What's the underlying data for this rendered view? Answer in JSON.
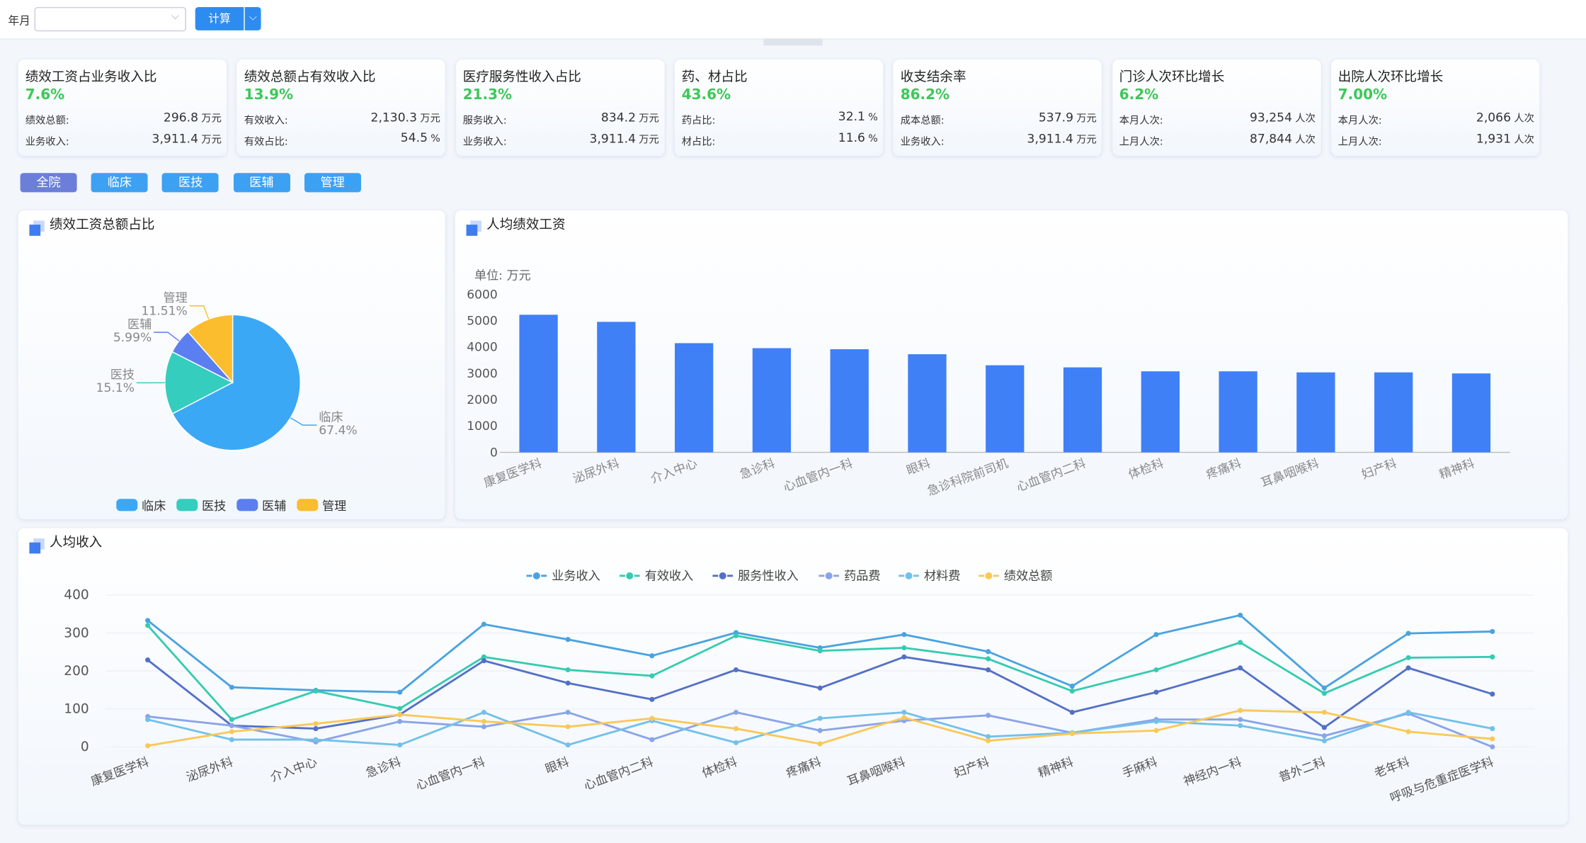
{
  "header": {
    "month_label": "年月",
    "button": "计算"
  },
  "kpis": [
    {
      "title": "绩效工资占业务收入比",
      "value": "7.6%",
      "rows": [
        {
          "label": "绩效总额:",
          "value": "296.8",
          "unit": "万元"
        },
        {
          "label": "业务收入:",
          "value": "3,911.4",
          "unit": "万元"
        }
      ]
    },
    {
      "title": "绩效总额占有效收入比",
      "value": "13.9%",
      "rows": [
        {
          "label": "有效收入:",
          "value": "2,130.3",
          "unit": "万元"
        },
        {
          "label": "有效占比:",
          "value": "54.5",
          "unit": "%"
        }
      ]
    },
    {
      "title": "医疗服务性收入占比",
      "value": "21.3%",
      "rows": [
        {
          "label": "服务收入:",
          "value": "834.2",
          "unit": "万元"
        },
        {
          "label": "业务收入:",
          "value": "3,911.4",
          "unit": "万元"
        }
      ]
    },
    {
      "title": "药、材占比",
      "value": "43.6%",
      "rows": [
        {
          "label": "药占比:",
          "value": "32.1",
          "unit": "%"
        },
        {
          "label": "材占比:",
          "value": "11.6",
          "unit": "%"
        }
      ]
    },
    {
      "title": "收支结余率",
      "value": "86.2%",
      "rows": [
        {
          "label": "成本总额:",
          "value": "537.9",
          "unit": "万元"
        },
        {
          "label": "业务收入:",
          "value": "3,911.4",
          "unit": "万元"
        }
      ]
    },
    {
      "title": "门诊人次环比增长",
      "value": "6.2%",
      "rows": [
        {
          "label": "本月人次:",
          "value": "93,254",
          "unit": "人次"
        },
        {
          "label": "上月人次:",
          "value": "87,844",
          "unit": "人次"
        }
      ]
    },
    {
      "title": "出院人次环比增长",
      "value": "7.00%",
      "rows": [
        {
          "label": "本月人次:",
          "value": "2,066",
          "unit": "人次"
        },
        {
          "label": "上月人次:",
          "value": "1,931",
          "unit": "人次"
        }
      ]
    }
  ],
  "tabs": [
    "全院",
    "临床",
    "医技",
    "医辅",
    "管理"
  ],
  "chart_data": [
    {
      "type": "pie",
      "title": "绩效工资总额占比",
      "categories": [
        "临床",
        "医技",
        "医辅",
        "管理"
      ],
      "values": [
        67.4,
        15.1,
        5.99,
        11.51
      ],
      "value_labels": [
        "67.4%",
        "15.1%",
        "5.99%",
        "11.51%"
      ],
      "colors": [
        "#3ba8f5",
        "#35cdbe",
        "#5b7ff0",
        "#fbbd2e"
      ],
      "legend": "bottom"
    },
    {
      "type": "bar",
      "title": "人均绩效工资",
      "y_axis_label": "单位: 万元",
      "categories": [
        "康复医学科",
        "泌尿外科",
        "介入中心",
        "急诊科",
        "心血管内一科",
        "眼科",
        "急诊科院前司机",
        "心血管内二科",
        "体检科",
        "疼痛科",
        "耳鼻咽喉科",
        "妇产科",
        "精神科"
      ],
      "values": [
        5230,
        4960,
        4150,
        3960,
        3920,
        3730,
        3310,
        3230,
        3080,
        3080,
        3040,
        3040,
        3000
      ],
      "color": "#4080f7",
      "ylim": [
        0,
        6000
      ],
      "yticks": [
        0,
        1000,
        2000,
        3000,
        4000,
        5000,
        6000
      ],
      "grid": false
    },
    {
      "type": "line",
      "title": "人均收入",
      "categories": [
        "康复医学科",
        "泌尿外科",
        "介入中心",
        "急诊科",
        "心血管内一科",
        "眼科",
        "心血管内二科",
        "体检科",
        "疼痛科",
        "耳鼻咽喉科",
        "妇产科",
        "精神科",
        "手麻科",
        "神经内一科",
        "普外二科",
        "老年科",
        "呼吸与危重症医学科"
      ],
      "series": [
        {
          "name": "业务收入",
          "color": "#4aa3df",
          "values": [
            333,
            157,
            149,
            144,
            323,
            283,
            240,
            301,
            261,
            296,
            251,
            160,
            296,
            347,
            155,
            299,
            304
          ]
        },
        {
          "name": "有效收入",
          "color": "#36cbb0",
          "values": [
            320,
            72,
            147,
            101,
            237,
            203,
            187,
            293,
            253,
            261,
            232,
            147,
            203,
            275,
            141,
            235,
            237
          ]
        },
        {
          "name": "服务性收入",
          "color": "#5470c6",
          "values": [
            229,
            56,
            48,
            85,
            227,
            168,
            125,
            203,
            155,
            237,
            203,
            91,
            144,
            208,
            51,
            208,
            139
          ]
        },
        {
          "name": "药品费",
          "color": "#8aa4e8",
          "values": [
            80,
            56,
            13,
            67,
            53,
            91,
            19,
            91,
            43,
            69,
            83,
            37,
            72,
            72,
            29,
            88,
            0
          ]
        },
        {
          "name": "材料费",
          "color": "#73c0ea",
          "values": [
            72,
            19,
            19,
            5,
            91,
            5,
            69,
            11,
            75,
            91,
            27,
            37,
            67,
            56,
            16,
            91,
            48
          ]
        },
        {
          "name": "绩效总额",
          "color": "#fac858",
          "values": [
            3,
            40,
            61,
            85,
            67,
            53,
            75,
            48,
            8,
            77,
            16,
            35,
            43,
            96,
            91,
            40,
            21
          ]
        }
      ],
      "ylim": [
        0,
        400
      ],
      "yticks": [
        0,
        100,
        200,
        300,
        400
      ],
      "grid": true,
      "legend": "top"
    }
  ]
}
